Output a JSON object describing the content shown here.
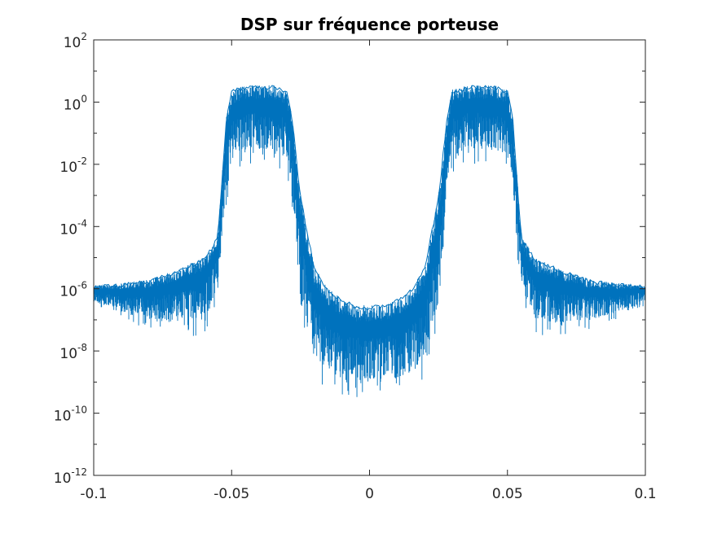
{
  "chart_data": {
    "type": "line",
    "title": "DSP sur fréquence porteuse",
    "xlabel": "",
    "ylabel": "",
    "xlim": [
      -0.1,
      0.1
    ],
    "ylim_log10": [
      -12,
      2
    ],
    "y_scale": "log",
    "grid": false,
    "x_ticks": [
      -0.1,
      -0.05,
      0,
      0.05,
      0.1
    ],
    "x_tick_labels": [
      "-0.1",
      "-0.05",
      "0",
      "0.05",
      "0.1"
    ],
    "y_ticks_log10": [
      -12,
      -10,
      -8,
      -6,
      -4,
      -2,
      0,
      2
    ],
    "y_tick_labels": [
      {
        "base": "10",
        "exp": "-12"
      },
      {
        "base": "10",
        "exp": "-10"
      },
      {
        "base": "10",
        "exp": "-8"
      },
      {
        "base": "10",
        "exp": "-6"
      },
      {
        "base": "10",
        "exp": "-4"
      },
      {
        "base": "10",
        "exp": "-2"
      },
      {
        "base": "10",
        "exp": "0"
      },
      {
        "base": "10",
        "exp": "2"
      }
    ],
    "series": [
      {
        "color": "#0072BD",
        "envelope": {
          "x": [
            -0.1,
            -0.09,
            -0.08,
            -0.07,
            -0.06,
            -0.055,
            -0.052,
            -0.05,
            -0.045,
            -0.04,
            -0.035,
            -0.03,
            -0.028,
            -0.025,
            -0.02,
            -0.015,
            -0.01,
            -0.005,
            0,
            0.005,
            0.01,
            0.015,
            0.02,
            0.025,
            0.028,
            0.03,
            0.035,
            0.04,
            0.045,
            0.05,
            0.052,
            0.055,
            0.06,
            0.07,
            0.08,
            0.09,
            0.1
          ],
          "max": [
            1.3e-06,
            1.5e-06,
            2e-06,
            4e-06,
            1e-05,
            5e-05,
            0.3,
            2.5,
            3.5,
            3.5,
            3.5,
            2.5,
            0.3,
            0.001,
            5e-06,
            1e-06,
            5e-07,
            3e-07,
            3e-07,
            3e-07,
            5e-07,
            1e-06,
            5e-06,
            0.001,
            0.3,
            2.5,
            3.5,
            3.5,
            3.5,
            2.5,
            0.3,
            5e-05,
            1e-05,
            4e-06,
            2e-06,
            1.5e-06,
            1.3e-06
          ],
          "min": [
            3e-07,
            1e-07,
            5e-08,
            3e-08,
            3e-08,
            5e-07,
            0.0003,
            0.005,
            0.01,
            0.01,
            0.01,
            0.005,
            0.0003,
            5e-08,
            1e-09,
            5e-10,
            3e-10,
            3e-10,
            3e-10,
            3e-10,
            3e-10,
            5e-10,
            1e-09,
            5e-08,
            0.0003,
            0.005,
            0.01,
            0.01,
            0.01,
            0.005,
            0.0003,
            5e-07,
            3e-08,
            3e-08,
            5e-08,
            1e-07,
            3e-07
          ]
        }
      }
    ]
  }
}
